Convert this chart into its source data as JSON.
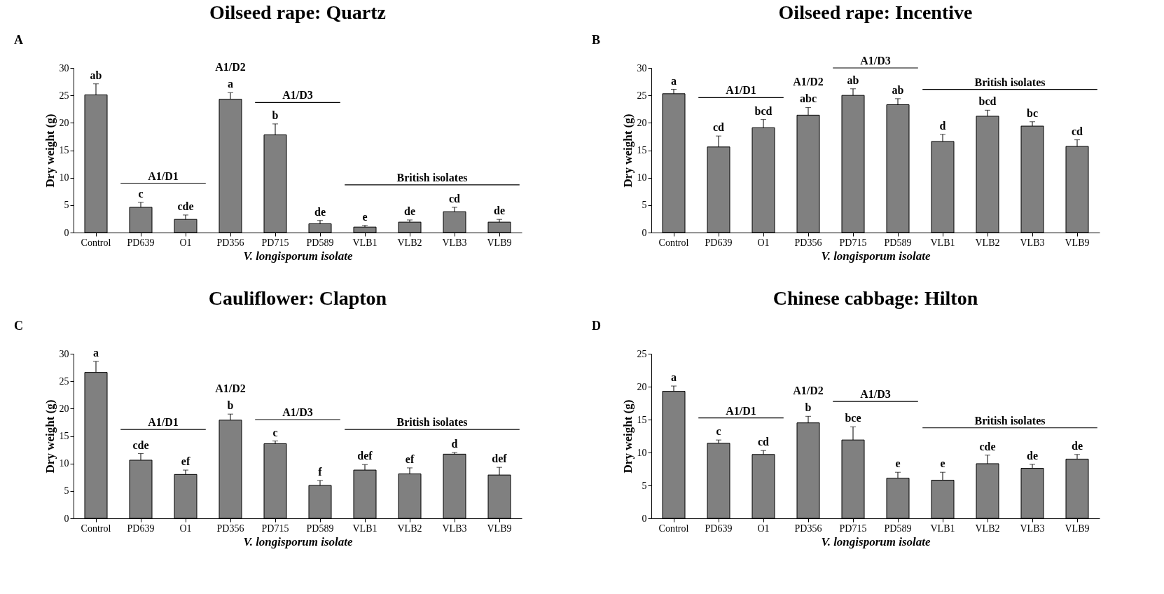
{
  "chart_data": [
    {
      "type": "bar",
      "title": "Oilseed rape: Quartz",
      "xlabel": "V. longisporum isolate",
      "ylabel": "Dry  weight (g)",
      "categories": [
        "Control",
        "PD639",
        "O1",
        "PD356",
        "PD715",
        "PD589",
        "VLB1",
        "VLB2",
        "VLB3",
        "VLB9"
      ],
      "series": [
        {
          "color": "#808080",
          "values": [
            25.1,
            4.6,
            2.4,
            24.3,
            17.8,
            1.6,
            1.0,
            1.9,
            3.8,
            1.9
          ],
          "errors": [
            2,
            0.9,
            0.8,
            1.2,
            2,
            0.6,
            0.3,
            0.4,
            0.8,
            0.5
          ],
          "value_labels": [
            "ab",
            "c",
            "cde",
            "A1/D2\na",
            "b",
            "de",
            "e",
            "de",
            "cd",
            "de"
          ]
        }
      ],
      "ylim": [
        0,
        30
      ],
      "yticks": [
        0,
        5,
        10,
        15,
        20,
        25,
        30
      ],
      "grid": false,
      "annotations": [
        "A",
        "A1/D1",
        "A1/D3",
        "British isolates"
      ]
    },
    {
      "type": "bar",
      "title": "Oilseed rape: Incentive",
      "xlabel": "V. longisporum isolate",
      "ylabel": "Dry  weight (g)",
      "categories": [
        "Control",
        "PD639",
        "O1",
        "PD356",
        "PD715",
        "PD589",
        "VLB1",
        "VLB2",
        "VLB3",
        "VLB9"
      ],
      "series": [
        {
          "color": "#808080",
          "values": [
            25.3,
            15.6,
            19.1,
            21.4,
            25.0,
            23.3,
            16.6,
            21.2,
            19.4,
            15.7
          ],
          "errors": [
            0.8,
            2,
            1.5,
            1.4,
            1.2,
            1.1,
            1.3,
            1.1,
            0.8,
            1.2
          ],
          "value_labels": [
            "a",
            "cd",
            "bcd",
            "A1/D2\nabc",
            "ab",
            "ab",
            "d",
            "bcd",
            "bc",
            "cd"
          ]
        }
      ],
      "ylim": [
        0,
        30
      ],
      "yticks": [
        0,
        5,
        10,
        15,
        20,
        25,
        30
      ],
      "grid": false,
      "annotations": [
        "B",
        "A1/D1",
        "A1/D3",
        "British isolates"
      ]
    },
    {
      "type": "bar",
      "title": "Cauliflower: Clapton",
      "xlabel": "V. longisporum isolate",
      "ylabel": "Dry  weight (g)",
      "categories": [
        "Control",
        "PD639",
        "O1",
        "PD356",
        "PD715",
        "PD589",
        "VLB1",
        "VLB2",
        "VLB3",
        "VLB9"
      ],
      "series": [
        {
          "color": "#808080",
          "values": [
            26.6,
            10.6,
            8.0,
            17.9,
            13.6,
            6.0,
            8.8,
            8.1,
            11.7,
            7.9
          ],
          "errors": [
            2,
            1.2,
            0.8,
            1.1,
            0.5,
            0.9,
            1,
            1.1,
            0.3,
            1.4
          ],
          "value_labels": [
            "a",
            "cde",
            "ef",
            "A1/D2\nb",
            "c",
            "f",
            "def",
            "ef",
            "d",
            "def"
          ]
        }
      ],
      "ylim": [
        0,
        30
      ],
      "yticks": [
        0,
        5,
        10,
        15,
        20,
        25,
        30
      ],
      "grid": false,
      "annotations": [
        "C",
        "A1/D1",
        "A1/D3",
        "British isolates"
      ]
    },
    {
      "type": "bar",
      "title": "Chinese cabbage: Hilton",
      "xlabel": "V. longisporum isolate",
      "ylabel": "Dry  weight (g)",
      "categories": [
        "Control",
        "PD639",
        "O1",
        "PD356",
        "PD715",
        "PD589",
        "VLB1",
        "VLB2",
        "VLB3",
        "VLB9"
      ],
      "series": [
        {
          "color": "#808080",
          "values": [
            19.3,
            11.4,
            9.7,
            14.5,
            11.9,
            6.1,
            5.8,
            8.3,
            7.6,
            9.0
          ],
          "errors": [
            0.8,
            0.5,
            0.6,
            1,
            2,
            0.9,
            1.2,
            1.3,
            0.6,
            0.7
          ],
          "value_labels": [
            "a",
            "c",
            "cd",
            "A1/D2\nb",
            "bce",
            "e",
            "e",
            "cde",
            "de",
            "de"
          ]
        }
      ],
      "ylim": [
        0,
        25
      ],
      "yticks": [
        0,
        5,
        10,
        15,
        20,
        25
      ],
      "grid": false,
      "annotations": [
        "D",
        "A1/D1",
        "A1/D3",
        "British isolates"
      ]
    }
  ]
}
